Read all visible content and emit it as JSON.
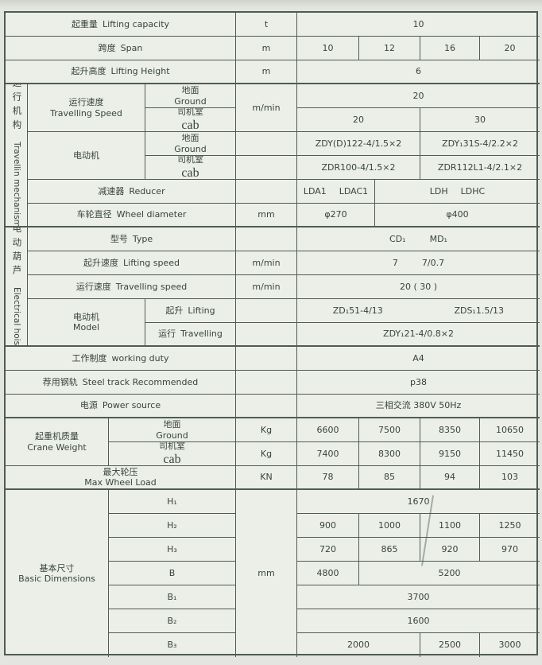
{
  "page": {
    "colors": {
      "bg": "#e3e6e0",
      "cell": "#ecefe8",
      "line": "#4e5c55",
      "text": "#36443d"
    }
  },
  "sections": {
    "travelling_mechanism": {
      "zh": "运行机构",
      "en": "Travellin mechanismg"
    },
    "electrical_hoist": {
      "zh": "电动葫芦",
      "en": "Electrical hoist"
    }
  },
  "rows": {
    "lifting_capacity": {
      "zh": "起重量",
      "en": "Lifting capacity",
      "unit": "t",
      "value": "10"
    },
    "span": {
      "zh": "跨度",
      "en": "Span",
      "unit": "m",
      "values": [
        "10",
        "12",
        "16",
        "20"
      ]
    },
    "lifting_height": {
      "zh": "起升高度",
      "en": "Lifting Height",
      "unit": "m",
      "value": "6"
    },
    "travelling_speed": {
      "zh": "运行速度",
      "en": "Travelling Speed",
      "unit": "m/min",
      "ground": {
        "zh": "地面",
        "en": "Ground",
        "value": "20"
      },
      "cab": {
        "zh": "司机室",
        "en": "cab",
        "values": [
          "20",
          "30"
        ]
      }
    },
    "motor": {
      "zh": "电动机",
      "ground": {
        "zh": "地面",
        "en": "Ground",
        "values": [
          "ZDY(D)122-4/1.5×2",
          "ZDY₁31S-4/2.2×2"
        ]
      },
      "cab": {
        "zh": "司机室",
        "en": "cab",
        "values": [
          "ZDR100-4/1.5×2",
          "ZDR112L1-4/2.1×2"
        ]
      }
    },
    "reducer": {
      "zh": "减速器",
      "en": "Reducer",
      "left": [
        "LDA1",
        "LDAC1"
      ],
      "right": [
        "LDH",
        "LDHC"
      ]
    },
    "wheel_diameter": {
      "zh": "车轮直径",
      "en": "Wheel diameter",
      "unit": "mm",
      "values": [
        "φ270",
        "φ400"
      ]
    },
    "hoist_type": {
      "zh": "型号",
      "en": "Type",
      "values": [
        "CD₁",
        "MD₁"
      ]
    },
    "hoist_lifting_speed": {
      "zh": "起升速度",
      "en": "Lifting speed",
      "unit": "m/min",
      "values": [
        "7",
        "7/0.7"
      ]
    },
    "hoist_travelling_speed": {
      "zh": "运行速度",
      "en": "Travelling speed",
      "unit": "m/min",
      "value": "20 ( 30 )"
    },
    "hoist_motor": {
      "zh": "电动机",
      "en": "Model",
      "lifting": {
        "zh": "起升",
        "en": "Lifting",
        "values": [
          "ZD₁51-4/13",
          "ZDS₁1.5/13"
        ]
      },
      "travelling": {
        "zh": "运行",
        "en": "Travelling",
        "value": "ZDY₁21-4/0.8×2"
      }
    },
    "working_duty": {
      "zh": "工作制度",
      "en": "working duty",
      "value": "A4"
    },
    "steel_track": {
      "zh": "荐用钢轨",
      "en": "Steel track Recommended",
      "value": "p38"
    },
    "power_source": {
      "zh": "电源",
      "en": "Power source",
      "value": "三相交流  380V  50Hz"
    },
    "crane_weight": {
      "zh": "起重机质量",
      "en": "Crane Weight",
      "ground": {
        "zh": "地面",
        "en": "Ground",
        "unit": "Kg",
        "values": [
          "6600",
          "7500",
          "8350",
          "10650"
        ]
      },
      "cab": {
        "zh": "司机室",
        "en": "cab",
        "unit": "Kg",
        "values": [
          "7400",
          "8300",
          "9150",
          "11450"
        ]
      }
    },
    "max_wheel_load": {
      "zh": "最大轮压",
      "en": "Max Wheel Load",
      "unit": "KN",
      "values": [
        "78",
        "85",
        "94",
        "103"
      ]
    },
    "basic_dimensions": {
      "zh": "基本尺寸",
      "en": "Basic Dimensions",
      "unit": "mm",
      "h1": {
        "label": "H₁",
        "value": "1670"
      },
      "h2": {
        "label": "H₂",
        "values": [
          "900",
          "1000",
          "1100",
          "1250"
        ]
      },
      "h3": {
        "label": "H₃",
        "values": [
          "720",
          "865",
          "920",
          "970"
        ]
      },
      "b": {
        "label": "B",
        "values": [
          "4800",
          "5200"
        ]
      },
      "b1": {
        "label": "B₁",
        "value": "3700"
      },
      "b2": {
        "label": "B₂",
        "value": "1600"
      },
      "b3": {
        "label": "B₃",
        "values": [
          "2000",
          "2500",
          "3000"
        ]
      }
    }
  }
}
